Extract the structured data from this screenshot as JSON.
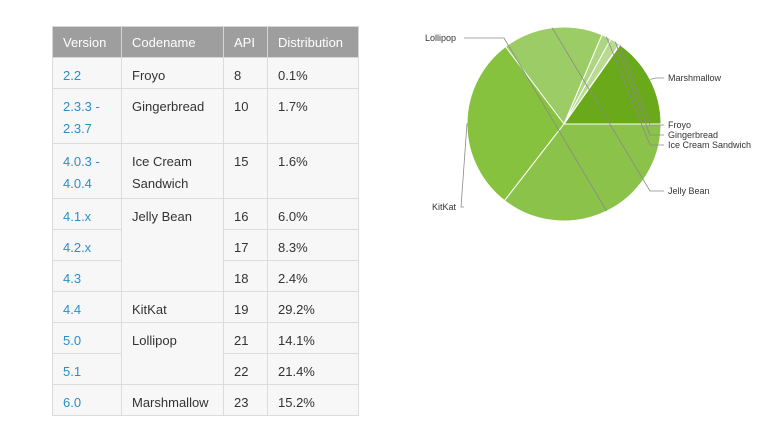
{
  "table": {
    "headers": [
      "Version",
      "Codename",
      "API",
      "Distribution"
    ]
  },
  "chart_data": {
    "type": "pie",
    "title": "",
    "table": [
      {
        "version": "2.2",
        "codename": "Froyo",
        "api": "8",
        "distribution": "0.1%"
      },
      {
        "version": "2.3.3 -\n2.3.7",
        "codename": "Gingerbread",
        "api": "10",
        "distribution": "1.7%"
      },
      {
        "version": "4.0.3 -\n4.0.4",
        "codename": "Ice Cream\nSandwich",
        "api": "15",
        "distribution": "1.6%"
      },
      {
        "version": "4.1.x",
        "codename": "Jelly Bean",
        "api": "16",
        "distribution": "6.0%"
      },
      {
        "version": "4.2.x",
        "codename": "",
        "api": "17",
        "distribution": "8.3%"
      },
      {
        "version": "4.3",
        "codename": "",
        "api": "18",
        "distribution": "2.4%"
      },
      {
        "version": "4.4",
        "codename": "KitKat",
        "api": "19",
        "distribution": "29.2%"
      },
      {
        "version": "5.0",
        "codename": "Lollipop",
        "api": "21",
        "distribution": "14.1%"
      },
      {
        "version": "5.1",
        "codename": "",
        "api": "22",
        "distribution": "21.4%"
      },
      {
        "version": "6.0",
        "codename": "Marshmallow",
        "api": "23",
        "distribution": "15.2%"
      }
    ],
    "slices": [
      {
        "label": "Marshmallow",
        "value": 15.2,
        "color": "#6aaa1a",
        "side": "right"
      },
      {
        "label": "Froyo",
        "value": 0.1,
        "color": "#c5e1a5",
        "side": "right"
      },
      {
        "label": "Gingerbread",
        "value": 1.7,
        "color": "#b8db91",
        "side": "right"
      },
      {
        "label": "Ice Cream Sandwich",
        "value": 1.6,
        "color": "#aed581",
        "side": "right"
      },
      {
        "label": "Jelly Bean",
        "value": 16.7,
        "color": "#9ccc65",
        "side": "right"
      },
      {
        "label": "KitKat",
        "value": 29.2,
        "color": "#86c23e",
        "side": "left"
      },
      {
        "label": "Lollipop",
        "value": 35.5,
        "color": "#8bc34a",
        "side": "left"
      }
    ]
  }
}
